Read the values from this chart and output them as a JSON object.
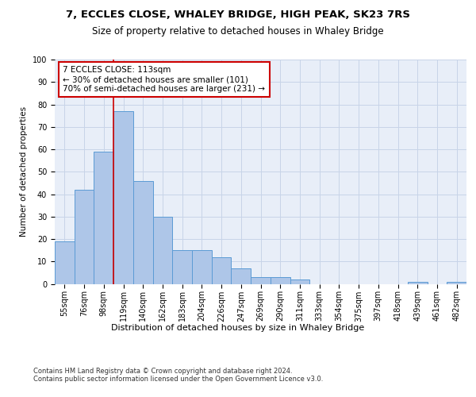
{
  "title1": "7, ECCLES CLOSE, WHALEY BRIDGE, HIGH PEAK, SK23 7RS",
  "title2": "Size of property relative to detached houses in Whaley Bridge",
  "xlabel": "Distribution of detached houses by size in Whaley Bridge",
  "ylabel": "Number of detached properties",
  "categories": [
    "55sqm",
    "76sqm",
    "98sqm",
    "119sqm",
    "140sqm",
    "162sqm",
    "183sqm",
    "204sqm",
    "226sqm",
    "247sqm",
    "269sqm",
    "290sqm",
    "311sqm",
    "333sqm",
    "354sqm",
    "375sqm",
    "397sqm",
    "418sqm",
    "439sqm",
    "461sqm",
    "482sqm"
  ],
  "values": [
    19,
    42,
    59,
    77,
    46,
    30,
    15,
    15,
    12,
    7,
    3,
    3,
    2,
    0,
    0,
    0,
    0,
    0,
    1,
    0,
    1
  ],
  "bar_color": "#aec6e8",
  "bar_edge_color": "#5b9bd5",
  "vline_x_idx": 2.5,
  "vline_color": "#cc0000",
  "annotation_text": "7 ECCLES CLOSE: 113sqm\n← 30% of detached houses are smaller (101)\n70% of semi-detached houses are larger (231) →",
  "annotation_box_color": "#ffffff",
  "annotation_box_edge": "#cc0000",
  "ylim": [
    0,
    100
  ],
  "yticks": [
    0,
    10,
    20,
    30,
    40,
    50,
    60,
    70,
    80,
    90,
    100
  ],
  "grid_color": "#c8d4e8",
  "bg_color": "#e8eef8",
  "footer": "Contains HM Land Registry data © Crown copyright and database right 2024.\nContains public sector information licensed under the Open Government Licence v3.0.",
  "title1_fontsize": 9.5,
  "title2_fontsize": 8.5,
  "xlabel_fontsize": 8,
  "ylabel_fontsize": 7.5,
  "tick_fontsize": 7,
  "annot_fontsize": 7.5,
  "footer_fontsize": 6
}
